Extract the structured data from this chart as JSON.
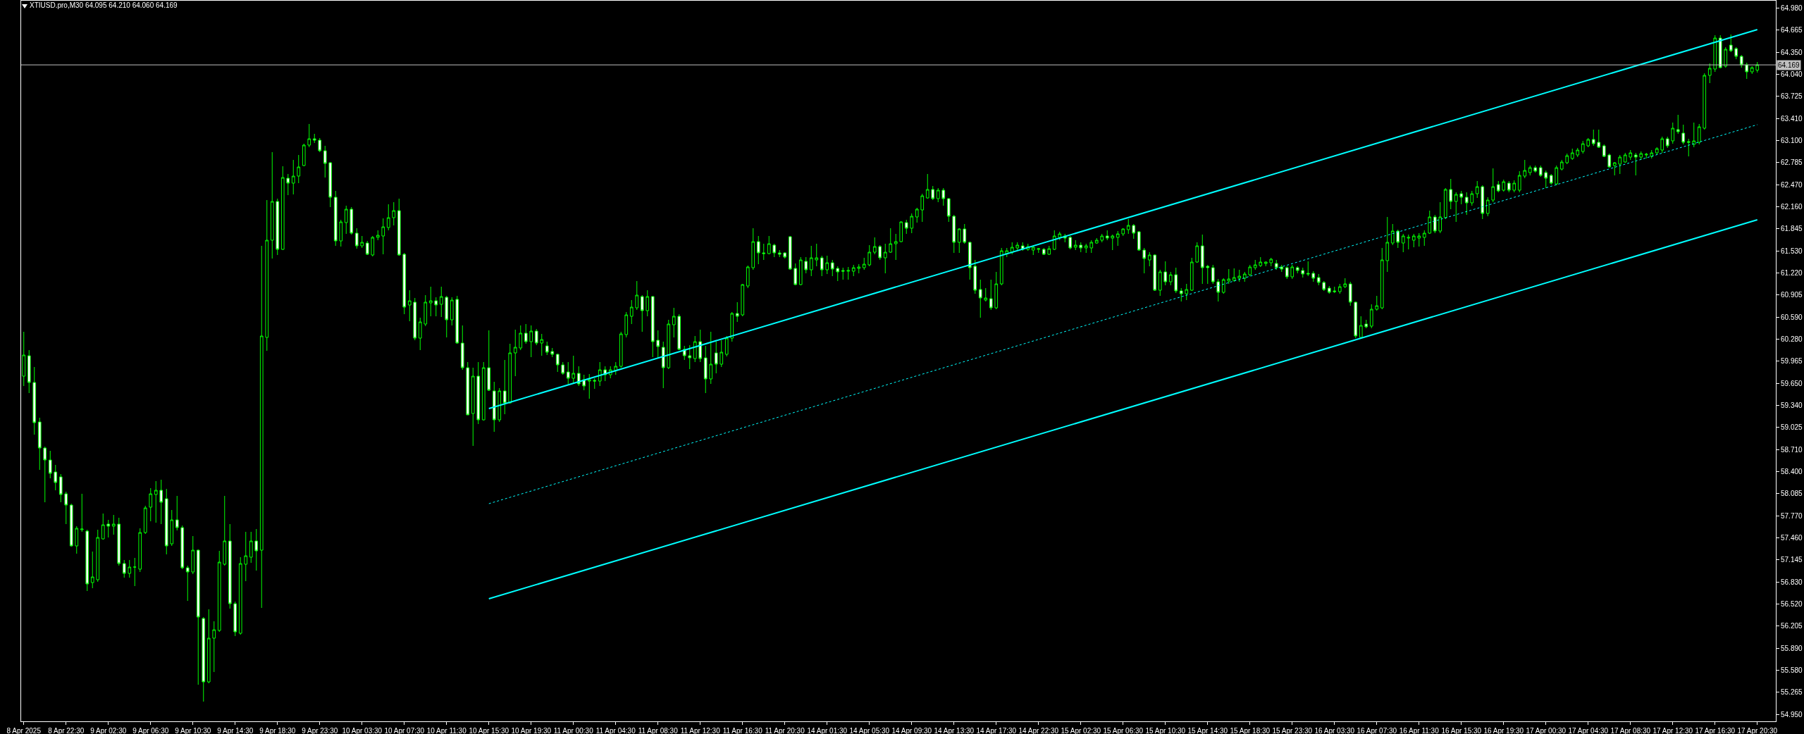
{
  "chart_data": {
    "type": "candlestick",
    "title": "XTIUSD.pro,M30 64.095 64.210 64.060 64.169",
    "categories": [
      "8 Apr 2025",
      null,
      null,
      null,
      null,
      null,
      null,
      null,
      "8 Apr 22:30",
      null,
      null,
      null,
      null,
      null,
      null,
      null,
      "9 Apr 02:30",
      null,
      null,
      null,
      null,
      null,
      null,
      null,
      "9 Apr 06:30",
      null,
      null,
      null,
      null,
      null,
      null,
      null,
      "9 Apr 10:30",
      null,
      null,
      null,
      null,
      null,
      null,
      null,
      "9 Apr 14:30",
      null,
      null,
      null,
      null,
      null,
      null,
      null,
      "9 Apr 18:30",
      null,
      null,
      null,
      null,
      null,
      null,
      null,
      "9 Apr 23:30",
      null,
      null,
      null,
      null,
      null,
      null,
      null,
      "10 Apr 03:30",
      null,
      null,
      null,
      null,
      null,
      null,
      null,
      "10 Apr 07:30",
      null,
      null,
      null,
      null,
      null,
      null,
      null,
      "10 Apr 11:30",
      null,
      null,
      null,
      null,
      null,
      null,
      null,
      "10 Apr 15:30",
      null,
      null,
      null,
      null,
      null,
      null,
      null,
      "10 Apr 19:30",
      null,
      null,
      null,
      null,
      null,
      null,
      null,
      "11 Apr 00:30",
      null,
      null,
      null,
      null,
      null,
      null,
      null,
      "11 Apr 04:30",
      null,
      null,
      null,
      null,
      null,
      null,
      null,
      "11 Apr 08:30",
      null,
      null,
      null,
      null,
      null,
      null,
      null,
      "11 Apr 12:30",
      null,
      null,
      null,
      null,
      null,
      null,
      null,
      "11 Apr 16:30",
      null,
      null,
      null,
      null,
      null,
      null,
      null,
      "11 Apr 20:30",
      null,
      null,
      null,
      null,
      null,
      null,
      null,
      "14 Apr 01:30",
      null,
      null,
      null,
      null,
      null,
      null,
      null,
      "14 Apr 05:30",
      null,
      null,
      null,
      null,
      null,
      null,
      null,
      "14 Apr 09:30",
      null,
      null,
      null,
      null,
      null,
      null,
      null,
      "14 Apr 13:30",
      null,
      null,
      null,
      null,
      null,
      null,
      null,
      "14 Apr 17:30",
      null,
      null,
      null,
      null,
      null,
      null,
      null,
      "14 Apr 22:30",
      null,
      null,
      null,
      null,
      null,
      null,
      null,
      "15 Apr 02:30",
      null,
      null,
      null,
      null,
      null,
      null,
      null,
      "15 Apr 06:30",
      null,
      null,
      null,
      null,
      null,
      null,
      null,
      "15 Apr 10:30",
      null,
      null,
      null,
      null,
      null,
      null,
      null,
      "15 Apr 14:30",
      null,
      null,
      null,
      null,
      null,
      null,
      null,
      "15 Apr 18:30",
      null,
      null,
      null,
      null,
      null,
      null,
      null,
      "15 Apr 23:30",
      null,
      null,
      null,
      null,
      null,
      null,
      null,
      "16 Apr 03:30",
      null,
      null,
      null,
      null,
      null,
      null,
      null,
      "16 Apr 07:30",
      null,
      null,
      null,
      null,
      null,
      null,
      null,
      "16 Apr 11:30",
      null,
      null,
      null,
      null,
      null,
      null,
      null,
      "16 Apr 15:30",
      null,
      null,
      null,
      null,
      null,
      null,
      null,
      "16 Apr 19:30",
      null,
      null,
      null,
      null,
      null,
      null,
      null,
      "17 Apr 00:30",
      null,
      null,
      null,
      null,
      null,
      null,
      null,
      "17 Apr 04:30",
      null,
      null,
      null,
      null,
      null,
      null,
      null,
      "17 Apr 08:30",
      null,
      null,
      null,
      null,
      null,
      null,
      null,
      "17 Apr 12:30",
      null,
      null,
      null,
      null,
      null,
      null,
      null,
      "17 Apr 16:30",
      null,
      null,
      null,
      null,
      null,
      null,
      null,
      "17 Apr 20:30"
    ],
    "ohlc": [
      [
        59.75,
        60.38,
        59.61,
        60.05
      ],
      [
        60.04,
        60.12,
        59.51,
        59.66
      ],
      [
        59.66,
        59.88,
        58.92,
        59.09
      ],
      [
        59.1,
        59.16,
        58.42,
        58.73
      ],
      [
        58.73,
        58.75,
        57.96,
        58.56
      ],
      [
        58.56,
        58.69,
        58.3,
        58.37
      ],
      [
        58.39,
        58.49,
        58.13,
        58.24
      ],
      [
        58.32,
        58.36,
        57.96,
        58.07
      ],
      [
        58.08,
        58.11,
        57.65,
        57.92
      ],
      [
        57.92,
        57.94,
        57.33,
        57.34
      ],
      [
        57.34,
        57.62,
        57.23,
        57.59
      ],
      [
        57.57,
        58.08,
        57.54,
        57.58
      ],
      [
        57.55,
        57.57,
        56.7,
        56.8
      ],
      [
        56.82,
        57.26,
        56.74,
        56.9
      ],
      [
        56.86,
        57.57,
        56.83,
        57.46
      ],
      [
        57.44,
        57.8,
        57.43,
        57.64
      ],
      [
        57.65,
        57.71,
        57.46,
        57.62
      ],
      [
        57.62,
        57.78,
        57.5,
        57.65
      ],
      [
        57.65,
        57.74,
        57.06,
        57.09
      ],
      [
        57.09,
        57.14,
        56.89,
        56.95
      ],
      [
        56.95,
        57.14,
        56.89,
        57.04
      ],
      [
        57.04,
        57.17,
        56.77,
        57.04
      ],
      [
        57.01,
        57.59,
        56.97,
        57.53
      ],
      [
        57.53,
        57.91,
        57.51,
        57.88
      ],
      [
        57.89,
        58.16,
        57.69,
        58.08
      ],
      [
        58.07,
        58.26,
        57.67,
        58.13
      ],
      [
        58.13,
        58.28,
        57.65,
        57.96
      ],
      [
        58.01,
        58.15,
        57.22,
        57.34
      ],
      [
        57.37,
        57.85,
        57.34,
        57.71
      ],
      [
        57.71,
        58.05,
        57.56,
        57.6
      ],
      [
        57.6,
        57.63,
        57.01,
        57.03
      ],
      [
        57.03,
        57.06,
        56.56,
        56.97
      ],
      [
        56.97,
        57.48,
        56.94,
        57.28
      ],
      [
        57.28,
        57.29,
        55.37,
        56.33
      ],
      [
        56.31,
        56.33,
        55.13,
        55.41
      ],
      [
        55.41,
        56.44,
        55.39,
        56.03
      ],
      [
        56.03,
        56.27,
        55.55,
        56.15
      ],
      [
        56.14,
        57.27,
        56.12,
        57.11
      ],
      [
        57.08,
        58.05,
        57.06,
        57.41
      ],
      [
        57.41,
        57.65,
        56.45,
        56.52
      ],
      [
        56.52,
        56.55,
        56.06,
        56.12
      ],
      [
        56.1,
        57.18,
        56.08,
        57.09
      ],
      [
        57.08,
        57.54,
        56.84,
        57.2
      ],
      [
        57.18,
        57.54,
        57.1,
        57.41
      ],
      [
        57.41,
        57.58,
        56.99,
        57.27
      ],
      [
        57.28,
        61.6,
        56.46,
        60.32
      ],
      [
        60.3,
        62.25,
        60.11,
        61.68
      ],
      [
        61.68,
        62.93,
        61.42,
        62.23
      ],
      [
        62.23,
        62.27,
        61.47,
        61.55
      ],
      [
        61.55,
        62.73,
        61.54,
        62.57
      ],
      [
        62.56,
        62.62,
        62.32,
        62.49
      ],
      [
        62.49,
        62.82,
        62.33,
        62.59
      ],
      [
        62.59,
        62.89,
        62.49,
        62.72
      ],
      [
        62.74,
        63.05,
        62.73,
        63.03
      ],
      [
        63.03,
        63.33,
        63.0,
        63.12
      ],
      [
        63.12,
        63.19,
        63.06,
        63.1
      ],
      [
        63.1,
        63.13,
        62.93,
        62.95
      ],
      [
        62.95,
        63.02,
        62.57,
        62.77
      ],
      [
        62.78,
        62.79,
        62.15,
        62.29
      ],
      [
        62.29,
        62.38,
        61.6,
        61.67
      ],
      [
        61.67,
        61.97,
        61.59,
        61.94
      ],
      [
        61.93,
        62.17,
        61.77,
        62.12
      ],
      [
        62.12,
        62.15,
        61.76,
        61.78
      ],
      [
        61.78,
        61.85,
        61.56,
        61.6
      ],
      [
        61.6,
        61.74,
        61.57,
        61.65
      ],
      [
        61.64,
        61.67,
        61.47,
        61.48
      ],
      [
        61.47,
        61.74,
        61.45,
        61.72
      ],
      [
        61.72,
        61.82,
        61.68,
        61.75
      ],
      [
        61.74,
        61.99,
        61.48,
        61.87
      ],
      [
        61.86,
        62.19,
        61.82,
        62.0
      ],
      [
        62.0,
        62.22,
        61.89,
        62.1
      ],
      [
        62.1,
        62.27,
        61.46,
        61.47
      ],
      [
        61.48,
        61.5,
        60.63,
        60.73
      ],
      [
        60.76,
        60.97,
        60.53,
        60.82
      ],
      [
        60.8,
        60.86,
        60.26,
        60.29
      ],
      [
        60.29,
        60.58,
        60.12,
        60.52
      ],
      [
        60.49,
        60.9,
        60.46,
        60.8
      ],
      [
        60.79,
        61.02,
        60.6,
        60.82
      ],
      [
        60.82,
        60.87,
        60.6,
        60.76
      ],
      [
        60.77,
        61.02,
        60.59,
        60.88
      ],
      [
        60.87,
        60.89,
        60.3,
        60.55
      ],
      [
        60.55,
        60.87,
        60.47,
        60.83
      ],
      [
        60.84,
        60.89,
        60.21,
        60.22
      ],
      [
        60.22,
        60.47,
        59.84,
        59.87
      ],
      [
        59.87,
        59.95,
        59.2,
        59.2
      ],
      [
        59.22,
        59.87,
        58.76,
        59.75
      ],
      [
        59.75,
        59.95,
        59.07,
        59.13
      ],
      [
        59.13,
        59.95,
        59.12,
        59.87
      ],
      [
        59.87,
        60.4,
        59.54,
        59.55
      ],
      [
        59.54,
        59.67,
        58.96,
        59.13
      ],
      [
        59.13,
        59.58,
        59.1,
        59.54
      ],
      [
        59.54,
        59.98,
        59.21,
        59.37
      ],
      [
        59.37,
        60.21,
        59.36,
        60.08
      ],
      [
        60.08,
        60.41,
        59.75,
        60.16
      ],
      [
        60.15,
        60.47,
        60.12,
        60.36
      ],
      [
        60.36,
        60.49,
        60.21,
        60.24
      ],
      [
        60.24,
        60.47,
        60.02,
        60.39
      ],
      [
        60.39,
        60.42,
        60.19,
        60.22
      ],
      [
        60.22,
        60.35,
        60.04,
        60.27
      ],
      [
        60.18,
        60.24,
        60.05,
        60.09
      ],
      [
        60.1,
        60.15,
        60.02,
        60.06
      ],
      [
        60.06,
        60.07,
        59.81,
        59.91
      ],
      [
        59.91,
        59.95,
        59.77,
        59.79
      ],
      [
        59.81,
        59.95,
        59.64,
        59.72
      ],
      [
        59.72,
        60.04,
        59.64,
        59.79
      ],
      [
        59.79,
        59.89,
        59.61,
        59.64
      ],
      [
        59.7,
        59.77,
        59.55,
        59.61
      ],
      [
        59.68,
        59.78,
        59.43,
        59.7
      ],
      [
        59.69,
        59.72,
        59.57,
        59.68
      ],
      [
        59.68,
        59.95,
        59.61,
        59.84
      ],
      [
        59.84,
        59.89,
        59.68,
        59.77
      ],
      [
        59.77,
        59.89,
        59.72,
        59.84
      ],
      [
        59.83,
        59.95,
        59.77,
        59.89
      ],
      [
        59.89,
        60.38,
        59.87,
        60.35
      ],
      [
        60.34,
        60.66,
        60.3,
        60.62
      ],
      [
        60.6,
        60.83,
        60.49,
        60.73
      ],
      [
        60.72,
        61.1,
        60.69,
        60.9
      ],
      [
        60.88,
        60.9,
        60.38,
        60.68
      ],
      [
        60.68,
        60.97,
        60.6,
        60.88
      ],
      [
        60.88,
        60.89,
        60.02,
        60.24
      ],
      [
        60.26,
        60.4,
        60.01,
        60.17
      ],
      [
        60.16,
        60.24,
        59.58,
        59.87
      ],
      [
        59.87,
        60.55,
        59.85,
        60.49
      ],
      [
        60.48,
        60.72,
        60.3,
        60.6
      ],
      [
        60.6,
        60.63,
        60.12,
        60.13
      ],
      [
        60.13,
        60.18,
        59.98,
        60.04
      ],
      [
        60.04,
        60.19,
        59.85,
        60.01
      ],
      [
        60.0,
        60.32,
        59.95,
        60.24
      ],
      [
        60.24,
        60.41,
        59.95,
        60.0
      ],
      [
        60.01,
        60.18,
        59.51,
        59.71
      ],
      [
        59.71,
        60.38,
        59.64,
        59.92
      ],
      [
        60.08,
        60.24,
        59.79,
        59.92
      ],
      [
        59.92,
        60.26,
        59.88,
        60.09
      ],
      [
        60.06,
        60.32,
        60.03,
        60.29
      ],
      [
        60.29,
        60.66,
        60.24,
        60.64
      ],
      [
        60.64,
        60.8,
        60.52,
        60.6
      ],
      [
        60.62,
        61.06,
        60.6,
        61.05
      ],
      [
        61.03,
        61.32,
        61.0,
        61.3
      ],
      [
        61.29,
        61.85,
        61.26,
        61.66
      ],
      [
        61.66,
        61.74,
        61.34,
        61.5
      ],
      [
        61.5,
        61.63,
        61.4,
        61.49
      ],
      [
        61.49,
        61.74,
        61.48,
        61.63
      ],
      [
        61.61,
        61.63,
        61.44,
        61.5
      ],
      [
        61.5,
        61.54,
        61.44,
        61.48
      ],
      [
        61.5,
        61.51,
        61.42,
        61.44
      ],
      [
        61.73,
        61.74,
        61.26,
        61.27
      ],
      [
        61.28,
        61.35,
        61.04,
        61.05
      ],
      [
        61.05,
        61.44,
        61.04,
        61.4
      ],
      [
        61.38,
        61.44,
        61.21,
        61.26
      ],
      [
        61.26,
        61.6,
        61.17,
        61.43
      ],
      [
        61.4,
        61.63,
        61.31,
        61.43
      ],
      [
        61.43,
        61.46,
        61.17,
        61.26
      ],
      [
        61.26,
        61.46,
        61.2,
        61.36
      ],
      [
        61.36,
        61.4,
        61.17,
        61.27
      ],
      [
        61.28,
        61.31,
        61.1,
        61.23
      ],
      [
        61.25,
        61.29,
        61.12,
        61.24
      ],
      [
        61.24,
        61.3,
        61.12,
        61.25
      ],
      [
        61.24,
        61.33,
        61.17,
        61.29
      ],
      [
        61.28,
        61.34,
        61.21,
        61.3
      ],
      [
        61.29,
        61.43,
        61.26,
        61.34
      ],
      [
        61.33,
        61.61,
        61.31,
        61.51
      ],
      [
        61.51,
        61.72,
        61.48,
        61.59
      ],
      [
        61.59,
        61.61,
        61.4,
        61.43
      ],
      [
        61.43,
        61.63,
        61.21,
        61.51
      ],
      [
        61.51,
        61.85,
        61.5,
        61.63
      ],
      [
        61.63,
        61.77,
        61.4,
        61.66
      ],
      [
        61.66,
        61.95,
        61.65,
        61.94
      ],
      [
        61.93,
        61.97,
        61.77,
        61.85
      ],
      [
        61.85,
        62.06,
        61.78,
        62.02
      ],
      [
        62.01,
        62.14,
        61.93,
        62.12
      ],
      [
        62.11,
        62.34,
        61.94,
        62.31
      ],
      [
        62.28,
        62.62,
        62.27,
        62.4
      ],
      [
        62.4,
        62.45,
        62.25,
        62.27
      ],
      [
        62.27,
        62.42,
        62.22,
        62.39
      ],
      [
        62.39,
        62.42,
        62.17,
        62.27
      ],
      [
        62.27,
        62.28,
        61.94,
        62.02
      ],
      [
        62.02,
        62.04,
        61.5,
        61.65
      ],
      [
        61.65,
        61.85,
        61.5,
        61.84
      ],
      [
        61.84,
        61.91,
        61.63,
        61.65
      ],
      [
        61.65,
        61.66,
        61.12,
        61.29
      ],
      [
        61.31,
        61.4,
        60.92,
        60.97
      ],
      [
        60.98,
        61.12,
        60.58,
        60.86
      ],
      [
        60.83,
        61.0,
        60.81,
        60.86
      ],
      [
        60.85,
        61.12,
        60.69,
        60.72
      ],
      [
        60.72,
        61.23,
        60.7,
        61.06
      ],
      [
        61.06,
        61.57,
        61.04,
        61.53
      ],
      [
        61.49,
        61.57,
        61.44,
        61.53
      ],
      [
        61.51,
        61.65,
        61.48,
        61.58
      ],
      [
        61.57,
        61.65,
        61.53,
        61.61
      ],
      [
        61.6,
        61.65,
        61.53,
        61.55
      ],
      [
        61.55,
        61.63,
        61.53,
        61.59
      ],
      [
        61.54,
        61.6,
        61.47,
        61.58
      ],
      [
        61.55,
        61.57,
        61.5,
        61.56
      ],
      [
        61.55,
        61.57,
        61.47,
        61.48
      ],
      [
        61.48,
        61.6,
        61.47,
        61.56
      ],
      [
        61.55,
        61.82,
        61.54,
        61.74
      ],
      [
        61.72,
        61.8,
        61.68,
        61.77
      ],
      [
        61.74,
        61.77,
        61.65,
        61.71
      ],
      [
        61.72,
        61.74,
        61.55,
        61.57
      ],
      [
        61.58,
        61.68,
        61.54,
        61.61
      ],
      [
        61.61,
        61.65,
        61.51,
        61.57
      ],
      [
        61.57,
        61.63,
        61.5,
        61.6
      ],
      [
        61.57,
        61.68,
        61.5,
        61.65
      ],
      [
        61.64,
        61.71,
        61.63,
        61.68
      ],
      [
        61.68,
        61.77,
        61.65,
        61.74
      ],
      [
        61.74,
        61.82,
        61.68,
        61.71
      ],
      [
        61.71,
        61.76,
        61.54,
        61.74
      ],
      [
        61.72,
        61.81,
        61.6,
        61.77
      ],
      [
        61.77,
        61.85,
        61.74,
        61.84
      ],
      [
        61.83,
        61.98,
        61.77,
        61.89
      ],
      [
        61.89,
        61.91,
        61.7,
        61.78
      ],
      [
        61.8,
        61.81,
        61.53,
        61.54
      ],
      [
        61.54,
        61.57,
        61.21,
        61.42
      ],
      [
        61.4,
        61.51,
        61.31,
        61.47
      ],
      [
        61.47,
        61.48,
        60.96,
        60.97
      ],
      [
        60.97,
        61.26,
        60.89,
        61.23
      ],
      [
        61.23,
        61.38,
        61.04,
        61.09
      ],
      [
        61.09,
        61.23,
        61.04,
        61.19
      ],
      [
        61.19,
        61.29,
        60.93,
        60.96
      ],
      [
        60.96,
        61.0,
        60.81,
        60.92
      ],
      [
        60.92,
        61.06,
        60.83,
        60.98
      ],
      [
        60.97,
        61.43,
        60.96,
        61.37
      ],
      [
        61.37,
        61.65,
        61.36,
        61.6
      ],
      [
        61.6,
        61.76,
        61.06,
        61.29
      ],
      [
        61.31,
        61.33,
        61.06,
        61.29
      ],
      [
        61.29,
        61.33,
        61.06,
        61.09
      ],
      [
        61.09,
        61.13,
        60.81,
        60.94
      ],
      [
        60.94,
        61.14,
        60.92,
        61.12
      ],
      [
        61.1,
        61.27,
        61.06,
        61.13
      ],
      [
        61.11,
        61.28,
        61.09,
        61.15
      ],
      [
        61.14,
        61.26,
        61.09,
        61.17
      ],
      [
        61.14,
        61.23,
        61.09,
        61.2
      ],
      [
        61.19,
        61.33,
        61.17,
        61.3
      ],
      [
        61.29,
        61.4,
        61.26,
        61.33
      ],
      [
        61.32,
        61.44,
        61.3,
        61.37
      ],
      [
        61.35,
        61.38,
        61.31,
        61.37
      ],
      [
        61.36,
        61.43,
        61.31,
        61.41
      ],
      [
        61.35,
        61.4,
        61.26,
        61.29
      ],
      [
        61.3,
        61.33,
        61.23,
        61.27
      ],
      [
        61.29,
        61.31,
        61.13,
        61.16
      ],
      [
        61.16,
        61.33,
        61.13,
        61.3
      ],
      [
        61.29,
        61.31,
        61.21,
        61.25
      ],
      [
        61.25,
        61.29,
        61.15,
        61.2
      ],
      [
        61.21,
        61.38,
        61.17,
        61.2
      ],
      [
        61.21,
        61.24,
        61.09,
        61.14
      ],
      [
        61.15,
        61.2,
        61.04,
        61.08
      ],
      [
        61.08,
        61.1,
        60.96,
        60.98
      ],
      [
        61.0,
        61.03,
        60.92,
        60.94
      ],
      [
        60.96,
        61.02,
        60.93,
        60.95
      ],
      [
        60.95,
        61.06,
        60.92,
        61.02
      ],
      [
        61.02,
        61.14,
        61.0,
        61.06
      ],
      [
        61.06,
        61.09,
        60.75,
        60.8
      ],
      [
        60.8,
        60.81,
        60.29,
        60.32
      ],
      [
        60.3,
        60.6,
        60.28,
        60.47
      ],
      [
        60.49,
        60.55,
        60.43,
        60.45
      ],
      [
        60.46,
        60.77,
        60.43,
        60.7
      ],
      [
        60.7,
        60.89,
        60.68,
        60.75
      ],
      [
        60.72,
        61.57,
        60.7,
        61.4
      ],
      [
        61.39,
        62.01,
        61.23,
        61.65
      ],
      [
        61.64,
        61.91,
        61.61,
        61.81
      ],
      [
        61.81,
        61.83,
        61.57,
        61.65
      ],
      [
        61.64,
        61.77,
        61.51,
        61.74
      ],
      [
        61.71,
        61.76,
        61.55,
        61.72
      ],
      [
        61.68,
        61.77,
        61.58,
        61.74
      ],
      [
        61.71,
        61.78,
        61.59,
        61.74
      ],
      [
        61.72,
        61.82,
        61.6,
        61.78
      ],
      [
        61.78,
        62.1,
        61.77,
        62.01
      ],
      [
        62.01,
        62.04,
        61.78,
        61.81
      ],
      [
        61.81,
        62.22,
        61.78,
        62.01
      ],
      [
        62.0,
        62.42,
        61.98,
        62.4
      ],
      [
        62.4,
        62.55,
        62.12,
        62.23
      ],
      [
        62.23,
        62.36,
        61.94,
        62.33
      ],
      [
        62.34,
        62.38,
        62.19,
        62.29
      ],
      [
        62.29,
        62.36,
        62.04,
        62.21
      ],
      [
        62.21,
        62.38,
        62.17,
        62.34
      ],
      [
        62.34,
        62.52,
        62.28,
        62.44
      ],
      [
        62.44,
        62.46,
        61.98,
        62.06
      ],
      [
        62.06,
        62.29,
        62.02,
        62.25
      ],
      [
        62.25,
        62.7,
        62.22,
        62.44
      ],
      [
        62.47,
        62.52,
        62.36,
        62.38
      ],
      [
        62.39,
        62.54,
        62.37,
        62.51
      ],
      [
        62.49,
        62.52,
        62.36,
        62.39
      ],
      [
        62.39,
        62.53,
        62.36,
        62.49
      ],
      [
        62.39,
        62.66,
        62.36,
        62.6
      ],
      [
        62.59,
        62.82,
        62.56,
        62.67
      ],
      [
        62.64,
        62.74,
        62.6,
        62.71
      ],
      [
        62.71,
        62.74,
        62.64,
        62.66
      ],
      [
        62.71,
        62.74,
        62.58,
        62.6
      ],
      [
        62.64,
        62.67,
        62.42,
        62.56
      ],
      [
        62.6,
        62.62,
        62.47,
        62.49
      ],
      [
        62.48,
        62.74,
        62.46,
        62.71
      ],
      [
        62.69,
        62.82,
        62.67,
        62.79
      ],
      [
        62.78,
        62.91,
        62.76,
        62.88
      ],
      [
        62.84,
        62.98,
        62.82,
        62.92
      ],
      [
        62.89,
        62.99,
        62.86,
        62.96
      ],
      [
        62.94,
        63.09,
        62.91,
        63.05
      ],
      [
        63.02,
        63.13,
        63.0,
        63.11
      ],
      [
        63.11,
        63.25,
        63.02,
        63.05
      ],
      [
        63.07,
        63.25,
        62.99,
        63.0
      ],
      [
        63.02,
        63.04,
        62.86,
        62.87
      ],
      [
        62.89,
        62.91,
        62.71,
        62.72
      ],
      [
        62.74,
        62.79,
        62.6,
        62.78
      ],
      [
        62.76,
        62.89,
        62.62,
        62.86
      ],
      [
        62.79,
        62.92,
        62.78,
        62.89
      ],
      [
        62.86,
        62.96,
        62.82,
        62.92
      ],
      [
        62.89,
        62.92,
        62.6,
        62.86
      ],
      [
        62.86,
        62.94,
        62.82,
        62.91
      ],
      [
        62.89,
        62.92,
        62.84,
        62.9
      ],
      [
        62.87,
        62.96,
        62.84,
        62.92
      ],
      [
        62.92,
        63.0,
        62.89,
        62.98
      ],
      [
        62.96,
        63.15,
        62.92,
        63.12
      ],
      [
        63.12,
        63.15,
        62.99,
        63.02
      ],
      [
        63.09,
        63.35,
        63.05,
        63.27
      ],
      [
        63.25,
        63.46,
        63.19,
        63.22
      ],
      [
        63.2,
        63.32,
        63.04,
        63.07
      ],
      [
        63.08,
        63.12,
        62.87,
        63.07
      ],
      [
        63.04,
        63.35,
        63.0,
        63.09
      ],
      [
        63.07,
        63.33,
        63.04,
        63.29
      ],
      [
        63.27,
        64.05,
        63.25,
        64.02
      ],
      [
        64.02,
        64.19,
        63.91,
        64.12
      ],
      [
        64.11,
        64.59,
        64.07,
        64.55
      ],
      [
        64.55,
        64.59,
        64.12,
        64.13
      ],
      [
        64.15,
        64.42,
        64.13,
        64.39
      ],
      [
        64.45,
        64.6,
        64.35,
        64.37
      ],
      [
        64.4,
        64.42,
        64.25,
        64.29
      ],
      [
        64.29,
        64.31,
        64.13,
        64.17
      ],
      [
        64.17,
        64.2,
        63.97,
        64.07
      ],
      [
        64.07,
        64.15,
        64.04,
        64.13
      ],
      [
        64.095,
        64.21,
        64.06,
        64.169
      ]
    ],
    "color": "#00ff00",
    "series": [
      {
        "type": "line",
        "color": "#00ffff",
        "x": [
          "10 Apr 15:30",
          "17 Apr 20:30"
        ],
        "values": [
          59.29,
          64.67
        ],
        "line_style": "solid"
      },
      {
        "type": "line",
        "color": "#00ffff",
        "x": [
          "10 Apr 15:30",
          "17 Apr 20:30"
        ],
        "values": [
          57.94,
          63.32
        ],
        "line_style": "dotted"
      },
      {
        "type": "line",
        "color": "#00ffff",
        "x": [
          "10 Apr 15:30",
          "17 Apr 20:30"
        ],
        "values": [
          56.59,
          61.97
        ],
        "line_style": "solid"
      }
    ],
    "ref_lines": [
      {
        "axis": "y",
        "value": 64.169,
        "label": "64.169",
        "color": "#c0c0c0"
      }
    ],
    "ylim": [
      54.85,
      65.08
    ],
    "yticks": [
      {
        "value": 64.98,
        "label": "64.980"
      },
      64.665,
      {
        "value": 64.35,
        "label": "64.350"
      },
      {
        "value": 64.04,
        "label": "64.040"
      },
      63.725,
      {
        "value": 63.41,
        "label": "63.410"
      },
      {
        "value": 63.1,
        "label": "63.100"
      },
      62.785,
      {
        "value": 62.47,
        "label": "62.470"
      },
      {
        "value": 62.16,
        "label": "62.160"
      },
      61.845,
      {
        "value": 61.53,
        "label": "61.530"
      },
      {
        "value": 61.22,
        "label": "61.220"
      },
      60.905,
      {
        "value": 60.59,
        "label": "60.590"
      },
      {
        "value": 60.28,
        "label": "60.280"
      },
      59.965,
      {
        "value": 59.65,
        "label": "59.650"
      },
      {
        "value": 59.34,
        "label": "59.340"
      },
      59.025,
      {
        "value": 58.71,
        "label": "58.710"
      },
      {
        "value": 58.4,
        "label": "58.400"
      },
      58.085,
      {
        "value": 57.77,
        "label": "57.770"
      },
      {
        "value": 57.46,
        "label": "57.460"
      },
      57.145,
      {
        "value": 56.83,
        "label": "56.830"
      },
      {
        "value": 56.52,
        "label": "56.520"
      },
      56.205,
      {
        "value": 55.89,
        "label": "55.890"
      },
      {
        "value": 55.58,
        "label": "55.580"
      },
      55.265,
      {
        "value": 54.95,
        "label": "54.950"
      }
    ]
  }
}
